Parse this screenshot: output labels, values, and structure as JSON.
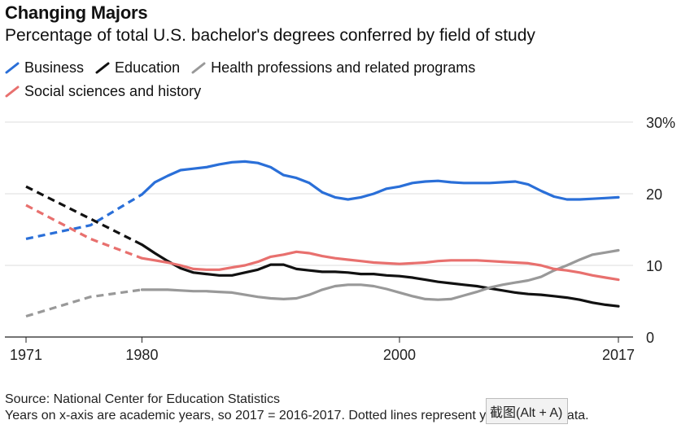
{
  "title": "Changing Majors",
  "subtitle": "Percentage of total U.S. bachelor's degrees conferred by field of study",
  "footer": {
    "source": "Source: National Center for Education Statistics",
    "note": "Years on x-axis are academic years, so 2017 = 2016-2017. Dotted lines represent years with no data."
  },
  "overlay": {
    "label": "截图(Alt + A)"
  },
  "chart_data": {
    "type": "line",
    "ylim": [
      0,
      30
    ],
    "xlim": [
      1971,
      2017
    ],
    "y_ticks": [
      0,
      10,
      20,
      30
    ],
    "y_tick_labels": [
      "0",
      "10",
      "20",
      "30%"
    ],
    "x_ticks": [
      1971,
      1980,
      2000,
      2017
    ],
    "x_tick_labels": [
      "1971",
      "1980",
      "2000",
      "2017"
    ],
    "grid": true,
    "legend_position": "top-left",
    "dotted_segment": {
      "start": 1971,
      "end": 1980
    },
    "series": [
      {
        "name": "Business",
        "color": "#2a6fd8",
        "points": [
          [
            1971,
            13.7
          ],
          [
            1976,
            15.6
          ],
          [
            1980,
            19.9
          ],
          [
            1981,
            21.6
          ],
          [
            1982,
            22.5
          ],
          [
            1983,
            23.3
          ],
          [
            1984,
            23.5
          ],
          [
            1985,
            23.7
          ],
          [
            1986,
            24.1
          ],
          [
            1987,
            24.4
          ],
          [
            1988,
            24.5
          ],
          [
            1989,
            24.3
          ],
          [
            1990,
            23.7
          ],
          [
            1991,
            22.6
          ],
          [
            1992,
            22.2
          ],
          [
            1993,
            21.5
          ],
          [
            1994,
            20.2
          ],
          [
            1995,
            19.5
          ],
          [
            1996,
            19.2
          ],
          [
            1997,
            19.5
          ],
          [
            1998,
            20.0
          ],
          [
            1999,
            20.7
          ],
          [
            2000,
            21.0
          ],
          [
            2001,
            21.5
          ],
          [
            2002,
            21.7
          ],
          [
            2003,
            21.8
          ],
          [
            2004,
            21.6
          ],
          [
            2005,
            21.5
          ],
          [
            2006,
            21.5
          ],
          [
            2007,
            21.5
          ],
          [
            2008,
            21.6
          ],
          [
            2009,
            21.7
          ],
          [
            2010,
            21.3
          ],
          [
            2011,
            20.4
          ],
          [
            2012,
            19.6
          ],
          [
            2013,
            19.2
          ],
          [
            2014,
            19.2
          ],
          [
            2015,
            19.3
          ],
          [
            2016,
            19.4
          ],
          [
            2017,
            19.5
          ]
        ]
      },
      {
        "name": "Education",
        "color": "#111111",
        "points": [
          [
            1971,
            21.0
          ],
          [
            1976,
            16.5
          ],
          [
            1980,
            12.9
          ],
          [
            1981,
            11.7
          ],
          [
            1982,
            10.6
          ],
          [
            1983,
            9.6
          ],
          [
            1984,
            9.0
          ],
          [
            1985,
            8.8
          ],
          [
            1986,
            8.6
          ],
          [
            1987,
            8.6
          ],
          [
            1988,
            9.0
          ],
          [
            1989,
            9.4
          ],
          [
            1990,
            10.1
          ],
          [
            1991,
            10.1
          ],
          [
            1992,
            9.5
          ],
          [
            1993,
            9.3
          ],
          [
            1994,
            9.1
          ],
          [
            1995,
            9.1
          ],
          [
            1996,
            9.0
          ],
          [
            1997,
            8.8
          ],
          [
            1998,
            8.8
          ],
          [
            1999,
            8.6
          ],
          [
            2000,
            8.5
          ],
          [
            2001,
            8.3
          ],
          [
            2002,
            8.0
          ],
          [
            2003,
            7.7
          ],
          [
            2004,
            7.5
          ],
          [
            2005,
            7.3
          ],
          [
            2006,
            7.1
          ],
          [
            2007,
            6.8
          ],
          [
            2008,
            6.5
          ],
          [
            2009,
            6.2
          ],
          [
            2010,
            6.0
          ],
          [
            2011,
            5.9
          ],
          [
            2012,
            5.7
          ],
          [
            2013,
            5.5
          ],
          [
            2014,
            5.2
          ],
          [
            2015,
            4.8
          ],
          [
            2016,
            4.5
          ],
          [
            2017,
            4.3
          ]
        ]
      },
      {
        "name": "Health professions and related programs",
        "color": "#999999",
        "points": [
          [
            1971,
            2.9
          ],
          [
            1976,
            5.6
          ],
          [
            1980,
            6.6
          ],
          [
            1981,
            6.6
          ],
          [
            1982,
            6.6
          ],
          [
            1983,
            6.5
          ],
          [
            1984,
            6.4
          ],
          [
            1985,
            6.4
          ],
          [
            1986,
            6.3
          ],
          [
            1987,
            6.2
          ],
          [
            1988,
            5.9
          ],
          [
            1989,
            5.6
          ],
          [
            1990,
            5.4
          ],
          [
            1991,
            5.3
          ],
          [
            1992,
            5.4
          ],
          [
            1993,
            5.9
          ],
          [
            1994,
            6.6
          ],
          [
            1995,
            7.1
          ],
          [
            1996,
            7.3
          ],
          [
            1997,
            7.3
          ],
          [
            1998,
            7.1
          ],
          [
            1999,
            6.7
          ],
          [
            2000,
            6.2
          ],
          [
            2001,
            5.7
          ],
          [
            2002,
            5.3
          ],
          [
            2003,
            5.2
          ],
          [
            2004,
            5.3
          ],
          [
            2005,
            5.8
          ],
          [
            2006,
            6.3
          ],
          [
            2007,
            6.9
          ],
          [
            2008,
            7.3
          ],
          [
            2009,
            7.6
          ],
          [
            2010,
            7.9
          ],
          [
            2011,
            8.4
          ],
          [
            2012,
            9.3
          ],
          [
            2013,
            10.0
          ],
          [
            2014,
            10.8
          ],
          [
            2015,
            11.5
          ],
          [
            2016,
            11.8
          ],
          [
            2017,
            12.1
          ]
        ]
      },
      {
        "name": "Social sciences and history",
        "color": "#e8706e",
        "points": [
          [
            1971,
            18.4
          ],
          [
            1976,
            13.7
          ],
          [
            1980,
            11.0
          ],
          [
            1981,
            10.7
          ],
          [
            1982,
            10.4
          ],
          [
            1983,
            10.0
          ],
          [
            1984,
            9.5
          ],
          [
            1985,
            9.4
          ],
          [
            1986,
            9.4
          ],
          [
            1987,
            9.7
          ],
          [
            1988,
            10.0
          ],
          [
            1989,
            10.5
          ],
          [
            1990,
            11.2
          ],
          [
            1991,
            11.5
          ],
          [
            1992,
            11.9
          ],
          [
            1993,
            11.7
          ],
          [
            1994,
            11.3
          ],
          [
            1995,
            11.0
          ],
          [
            1996,
            10.8
          ],
          [
            1997,
            10.6
          ],
          [
            1998,
            10.4
          ],
          [
            1999,
            10.3
          ],
          [
            2000,
            10.2
          ],
          [
            2001,
            10.3
          ],
          [
            2002,
            10.4
          ],
          [
            2003,
            10.6
          ],
          [
            2004,
            10.7
          ],
          [
            2005,
            10.7
          ],
          [
            2006,
            10.7
          ],
          [
            2007,
            10.6
          ],
          [
            2008,
            10.5
          ],
          [
            2009,
            10.4
          ],
          [
            2010,
            10.3
          ],
          [
            2011,
            10.0
          ],
          [
            2012,
            9.5
          ],
          [
            2013,
            9.3
          ],
          [
            2014,
            9.0
          ],
          [
            2015,
            8.6
          ],
          [
            2016,
            8.3
          ],
          [
            2017,
            8.0
          ]
        ]
      }
    ]
  }
}
